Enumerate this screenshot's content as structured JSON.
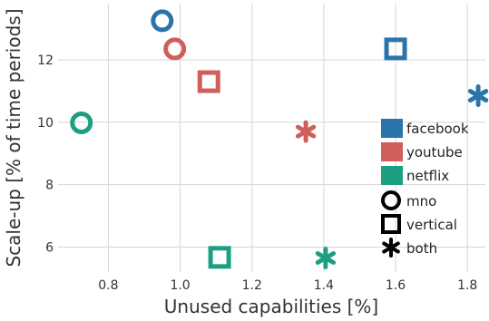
{
  "chart_data": {
    "type": "scatter",
    "xlabel": "Unused capabilities [%]",
    "ylabel": "Scale-up [% of time periods]",
    "xlim": [
      0.66,
      1.85
    ],
    "ylim": [
      5.2,
      13.8
    ],
    "xticks": [
      0.8,
      1.0,
      1.2,
      1.4,
      1.6,
      1.8
    ],
    "xtick_labels": [
      "0.8",
      "1.0",
      "1.2",
      "1.4",
      "1.6",
      "1.8"
    ],
    "yticks": [
      6,
      8,
      10,
      12
    ],
    "ytick_labels": [
      "6",
      "8",
      "10",
      "12"
    ],
    "grid": true,
    "legend_position": "right",
    "legend": {
      "colors": [
        {
          "label": "facebook",
          "color": "#2a74aa"
        },
        {
          "label": "youtube",
          "color": "#d05e5a"
        },
        {
          "label": "netflix",
          "color": "#1c9f83"
        }
      ],
      "shapes": [
        {
          "label": "mno",
          "marker": "circle"
        },
        {
          "label": "vertical",
          "marker": "square"
        },
        {
          "label": "both",
          "marker": "asterisk"
        }
      ]
    },
    "series": [
      {
        "color": "#2a74aa",
        "points": [
          {
            "x": 0.95,
            "y": 13.25,
            "marker": "circle"
          },
          {
            "x": 1.6,
            "y": 12.35,
            "marker": "square"
          },
          {
            "x": 1.83,
            "y": 10.85,
            "marker": "asterisk"
          }
        ]
      },
      {
        "color": "#d05e5a",
        "points": [
          {
            "x": 0.985,
            "y": 12.35,
            "marker": "circle"
          },
          {
            "x": 1.08,
            "y": 11.3,
            "marker": "square"
          },
          {
            "x": 1.35,
            "y": 9.7,
            "marker": "asterisk"
          }
        ]
      },
      {
        "color": "#1c9f83",
        "points": [
          {
            "x": 0.725,
            "y": 9.98,
            "marker": "circle"
          },
          {
            "x": 1.11,
            "y": 5.67,
            "marker": "square"
          },
          {
            "x": 1.405,
            "y": 5.65,
            "marker": "asterisk"
          }
        ]
      }
    ]
  }
}
